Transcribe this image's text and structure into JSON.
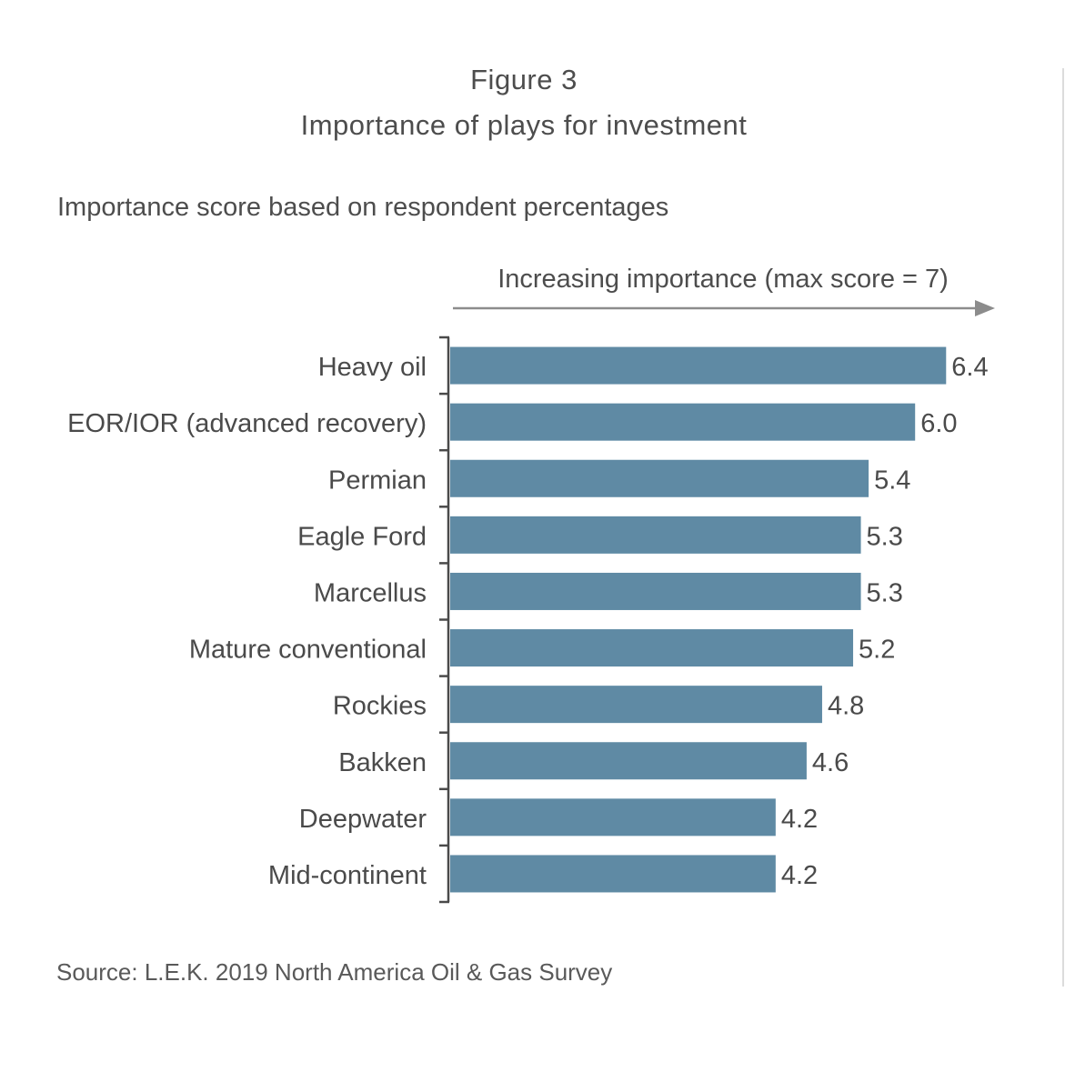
{
  "figure": {
    "label": "Figure 3",
    "title": "Importance of plays for investment",
    "subtitle": "Importance score based on respondent percentages",
    "source": "Source: L.E.K. 2019 North America Oil & Gas Survey"
  },
  "chart_data": {
    "type": "bar",
    "orientation": "horizontal",
    "title": "Importance of plays for investment",
    "axis_annotation": "Increasing importance (max score = 7)",
    "categories": [
      "Heavy oil",
      "EOR/IOR (advanced recovery)",
      "Permian",
      "Eagle Ford",
      "Marcellus",
      "Mature conventional",
      "Rockies",
      "Bakken",
      "Deepwater",
      "Mid-continent"
    ],
    "values": [
      6.4,
      6.0,
      5.4,
      5.3,
      5.3,
      5.2,
      4.8,
      4.6,
      4.2,
      4.2
    ],
    "value_labels": [
      "6.4",
      "6.0",
      "5.4",
      "5.3",
      "5.3",
      "5.2",
      "4.8",
      "4.6",
      "4.2",
      "4.2"
    ],
    "xlim": [
      0,
      7
    ],
    "grid": false,
    "legend": "none",
    "colors": {
      "bar": "#5f8aa4",
      "axis": "#4a4a4a",
      "arrow": "#8c8c8c",
      "text": "#4a4a4a"
    }
  }
}
